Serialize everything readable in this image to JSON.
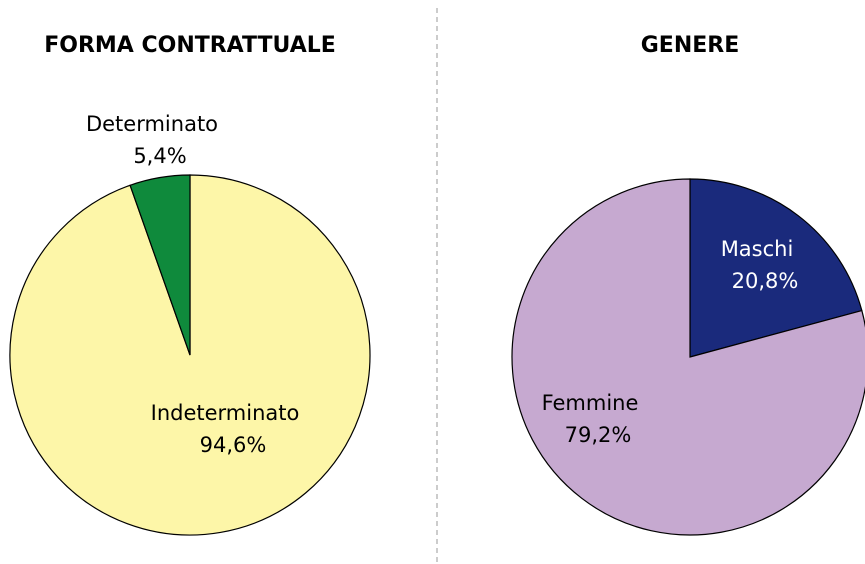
{
  "chart_data": [
    {
      "type": "pie",
      "title": "FORMA CONTRATTUALE",
      "categories": [
        "Indeterminato",
        "Determinato"
      ],
      "values": [
        94.6,
        5.4
      ],
      "value_labels": [
        "94,6%",
        "5,4%"
      ],
      "colors": [
        "#fdf6a8",
        "#0f8a3c"
      ]
    },
    {
      "type": "pie",
      "title": "GENERE",
      "categories": [
        "Maschi",
        "Femmine"
      ],
      "values": [
        20.8,
        79.2
      ],
      "value_labels": [
        "20,8%",
        "79,2%"
      ],
      "colors": [
        "#1a2a7c",
        "#c6a9d0"
      ]
    }
  ]
}
